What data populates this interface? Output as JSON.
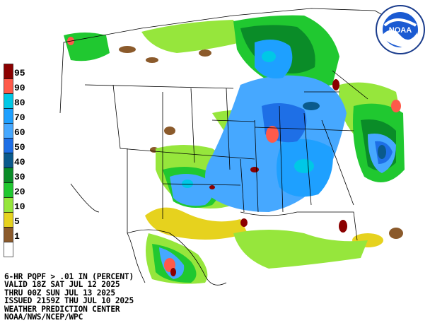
{
  "product": {
    "line1": "6-HR PQPF > .01 IN (PERCENT)",
    "line2": "VALID 18Z SAT JUL 12 2025",
    "line3": "THRU 00Z SUN JUL 13 2025",
    "line4": "ISSUED 2159Z THU JUL 10 2025",
    "line5": "WEATHER PREDICTION CENTER",
    "line6": "NOAA/NWS/NCEP/WPC"
  },
  "logo": {
    "text": "NOAA",
    "icon": "noaa-logo-icon"
  },
  "legend": {
    "items": [
      {
        "label": "95",
        "color": "#8b0000"
      },
      {
        "label": "90",
        "color": "#ff5a4a"
      },
      {
        "label": "80",
        "color": "#00c8e6"
      },
      {
        "label": "70",
        "color": "#1ea0ff"
      },
      {
        "label": "60",
        "color": "#46a8ff"
      },
      {
        "label": "50",
        "color": "#1e6fe6"
      },
      {
        "label": "40",
        "color": "#0a5a8c"
      },
      {
        "label": "30",
        "color": "#0a8c28"
      },
      {
        "label": "20",
        "color": "#20c830"
      },
      {
        "label": "10",
        "color": "#96e63c"
      },
      {
        "label": "5",
        "color": "#e6d21e"
      },
      {
        "label": "1",
        "color": "#8b5a2b"
      },
      {
        "label": "",
        "color": "#ffffff"
      }
    ]
  }
}
